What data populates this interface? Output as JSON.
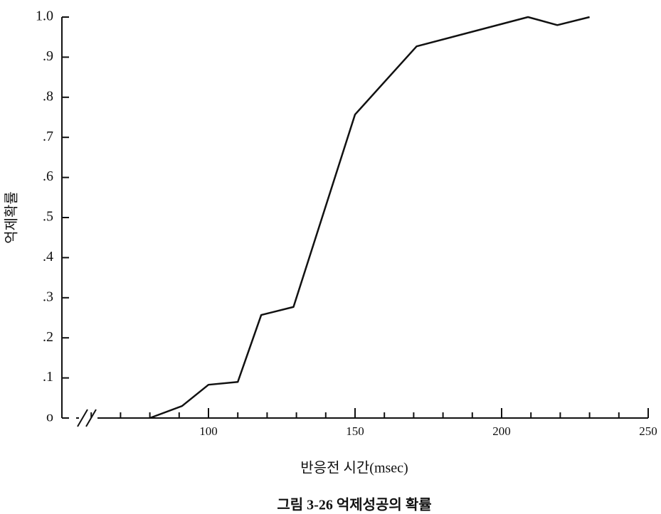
{
  "chart_data": {
    "type": "line",
    "caption": "그림 3-26 억제성공의 확률",
    "x_label": "반응전 시간(msec)",
    "y_label": "억제확률",
    "x": [
      80,
      91,
      100,
      110,
      118,
      129,
      150,
      171,
      209,
      219,
      230
    ],
    "series": [
      {
        "color": "#111111",
        "values": [
          0,
          0.03,
          0.083,
          0.09,
          0.257,
          0.277,
          0.757,
          0.927,
          1.0,
          0.98,
          1.0
        ]
      }
    ],
    "xlim": [
      50,
      250
    ],
    "xticks": [
      100,
      150,
      200,
      250
    ],
    "xminorticks": [
      60,
      70,
      80,
      90,
      110,
      120,
      130,
      140,
      160,
      170,
      180,
      190,
      210,
      220,
      230,
      240
    ],
    "ylim": [
      0,
      1.0
    ],
    "yticks": [
      {
        "value": 0,
        "label": "o"
      },
      {
        "value": 0.1,
        "label": ".1"
      },
      {
        "value": 0.2,
        "label": ".2"
      },
      {
        "value": 0.3,
        "label": ".3"
      },
      {
        "value": 0.4,
        "label": ".4"
      },
      {
        "value": 0.5,
        "label": ".5"
      },
      {
        "value": 0.6,
        "label": ".6"
      },
      {
        "value": 0.7,
        "label": ".7"
      },
      {
        "value": 0.8,
        "label": ".8"
      },
      {
        "value": 0.9,
        "label": ".9"
      },
      {
        "value": 1.0,
        "label": "1.0"
      }
    ],
    "axis_break": true
  }
}
